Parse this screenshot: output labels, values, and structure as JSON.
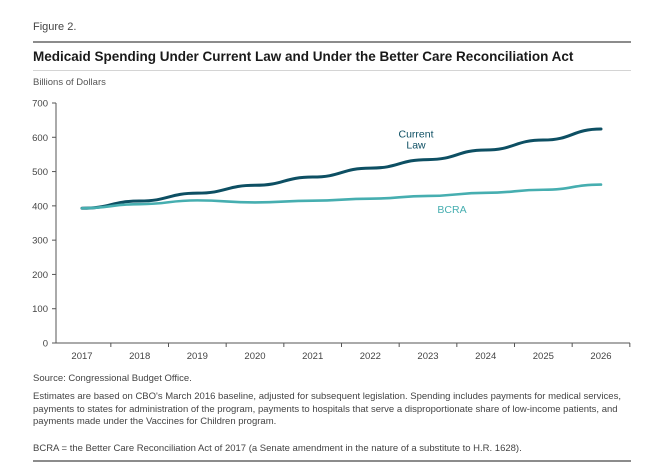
{
  "figure_label": "Figure 2.",
  "title": "Medicaid Spending Under Current Law and Under the Better Care Reconciliation Act",
  "y_unit": "Billions of Dollars",
  "source": "Source: Congressional Budget Office.",
  "notes": "Estimates are based on CBO's March 2016 baseline, adjusted for subsequent legislation. Spending includes payments for medical services, payments to states for administration of the program, payments to hospitals that serve a disproportionate share of low-income patients, and payments made under the Vaccines for Children program.",
  "abbreviation": "BCRA = the Better Care Reconciliation Act of 2017 (a Senate amendment in the nature of a substitute to H.R. 1628).",
  "colors": {
    "current_law": "#0d4f63",
    "bcra": "#46aeb0",
    "axis": "#555555"
  },
  "chart_data": {
    "type": "line",
    "x": [
      2017,
      2018,
      2019,
      2020,
      2021,
      2022,
      2023,
      2024,
      2025,
      2026
    ],
    "ylim": [
      0,
      700
    ],
    "yticks": [
      0,
      100,
      200,
      300,
      400,
      500,
      600,
      700
    ],
    "xlabel": "",
    "ylabel": "Billions of Dollars",
    "grid": false,
    "series": [
      {
        "name": "Current Law",
        "label_lines": [
          "Current",
          "Law"
        ],
        "color": "#0d4f63",
        "values": [
          393,
          414,
          437,
          460,
          484,
          510,
          535,
          563,
          592,
          624
        ]
      },
      {
        "name": "BCRA",
        "label_lines": [
          "BCRA"
        ],
        "color": "#46aeb0",
        "values": [
          393,
          405,
          416,
          410,
          415,
          421,
          429,
          438,
          447,
          462
        ]
      }
    ]
  }
}
